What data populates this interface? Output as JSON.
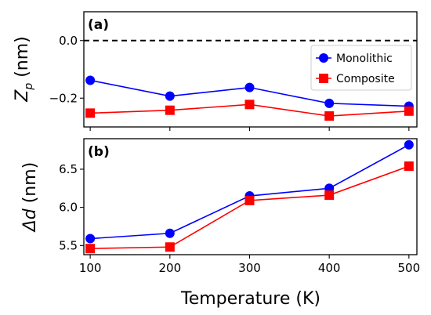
{
  "chart_data": [
    {
      "type": "line",
      "panel_label": "(a)",
      "x": [
        100,
        200,
        300,
        400,
        500
      ],
      "ylabel_main": "Z",
      "ylabel_sub": "p",
      "ylabel_unit": " (nm)",
      "ylim": [
        -0.3,
        0.1
      ],
      "yticks": [
        0.0,
        -0.2
      ],
      "ytick_labels": [
        "0.0",
        "−0.2"
      ],
      "reference_line": {
        "y": 0.0,
        "style": "dashed",
        "color": "#000000"
      },
      "series": [
        {
          "name": "Monolithic",
          "color": "#0000ff",
          "marker": "circle",
          "values": [
            -0.138,
            -0.193,
            -0.163,
            -0.218,
            -0.228
          ]
        },
        {
          "name": "Composite",
          "color": "#ff0000",
          "marker": "square",
          "values": [
            -0.252,
            -0.242,
            -0.222,
            -0.262,
            -0.245
          ]
        }
      ],
      "legend": {
        "placement": "right",
        "entries": [
          "Monolithic",
          "Composite"
        ]
      }
    },
    {
      "type": "line",
      "panel_label": "(b)",
      "x": [
        100,
        200,
        300,
        400,
        500
      ],
      "ylabel_main": "Δd",
      "ylabel_unit": " (nm)",
      "ylim": [
        5.38,
        6.9
      ],
      "yticks": [
        5.5,
        6.0,
        6.5
      ],
      "ytick_labels": [
        "5.5",
        "6.0",
        "6.5"
      ],
      "series": [
        {
          "name": "Monolithic",
          "color": "#0000ff",
          "marker": "circle",
          "values": [
            5.59,
            5.66,
            6.15,
            6.25,
            6.82
          ]
        },
        {
          "name": "Composite",
          "color": "#ff0000",
          "marker": "square",
          "values": [
            5.46,
            5.48,
            6.09,
            6.16,
            6.54
          ]
        }
      ]
    }
  ],
  "shared_x": {
    "xlim": [
      92,
      510
    ],
    "xticks": [
      100,
      200,
      300,
      400,
      500
    ],
    "xtick_labels": [
      "100",
      "200",
      "300",
      "400",
      "500"
    ],
    "xlabel": "Temperature (K)"
  }
}
